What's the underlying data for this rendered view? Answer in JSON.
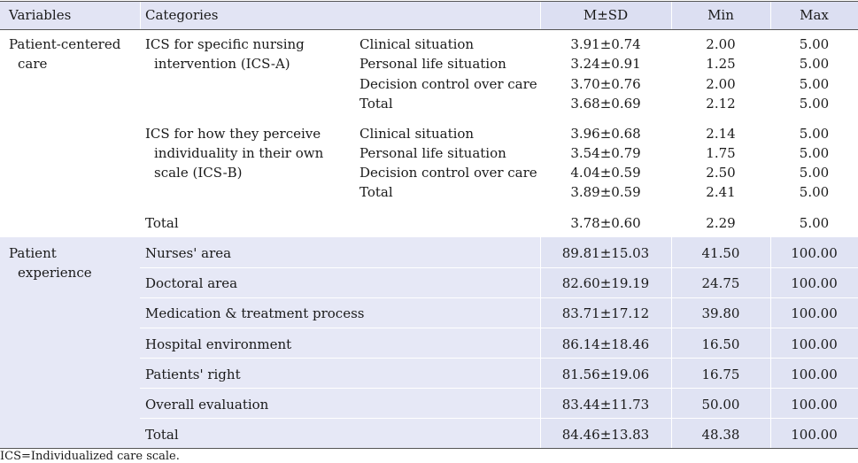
{
  "header": {
    "variables": "Variables",
    "categories": "Categories",
    "msd": "M±SD",
    "min": "Min",
    "max": "Max"
  },
  "pcc": {
    "var_line1": "Patient-centered",
    "var_line2": "care",
    "icsa": {
      "label_line1": "ICS for specific nursing",
      "label_line2": "intervention (ICS-A)",
      "rows": [
        {
          "sub": "Clinical situation",
          "msd": "3.91±0.74",
          "min": "2.00",
          "max": "5.00"
        },
        {
          "sub": "Personal life situation",
          "msd": "3.24±0.91",
          "min": "1.25",
          "max": "5.00"
        },
        {
          "sub": "Decision control over care",
          "msd": "3.70±0.76",
          "min": "2.00",
          "max": "5.00"
        },
        {
          "sub": "Total",
          "msd": "3.68±0.69",
          "min": "2.12",
          "max": "5.00"
        }
      ]
    },
    "icsb": {
      "label_line1": "ICS for how they perceive",
      "label_line2": "individuality in their own",
      "label_line3": "scale (ICS-B)",
      "rows": [
        {
          "sub": "Clinical situation",
          "msd": "3.96±0.68",
          "min": "2.14",
          "max": "5.00"
        },
        {
          "sub": "Personal life situation",
          "msd": "3.54±0.79",
          "min": "1.75",
          "max": "5.00"
        },
        {
          "sub": "Decision control over care",
          "msd": "4.04±0.59",
          "min": "2.50",
          "max": "5.00"
        },
        {
          "sub": "Total",
          "msd": "3.89±0.59",
          "min": "2.41",
          "max": "5.00"
        }
      ]
    },
    "total": {
      "label": "Total",
      "msd": "3.78±0.60",
      "min": "2.29",
      "max": "5.00"
    }
  },
  "pe": {
    "var_line1": "Patient",
    "var_line2": "experience",
    "rows": [
      {
        "cat": "Nurses' area",
        "msd": "89.81±15.03",
        "min": "41.50",
        "max": "100.00"
      },
      {
        "cat": "Doctoral area",
        "msd": "82.60±19.19",
        "min": "24.75",
        "max": "100.00"
      },
      {
        "cat": "Medication & treatment process",
        "msd": "83.71±17.12",
        "min": "39.80",
        "max": "100.00"
      },
      {
        "cat": "Hospital environment",
        "msd": "86.14±18.46",
        "min": "16.50",
        "max": "100.00"
      },
      {
        "cat": "Patients' right",
        "msd": "81.56±19.06",
        "min": "16.75",
        "max": "100.00"
      },
      {
        "cat": "Overall evaluation",
        "msd": "83.44±11.73",
        "min": "50.00",
        "max": "100.00"
      },
      {
        "cat": "Total",
        "msd": "84.46±13.83",
        "min": "48.38",
        "max": "100.00"
      }
    ]
  },
  "footnote": "ICS=Individualized care scale."
}
